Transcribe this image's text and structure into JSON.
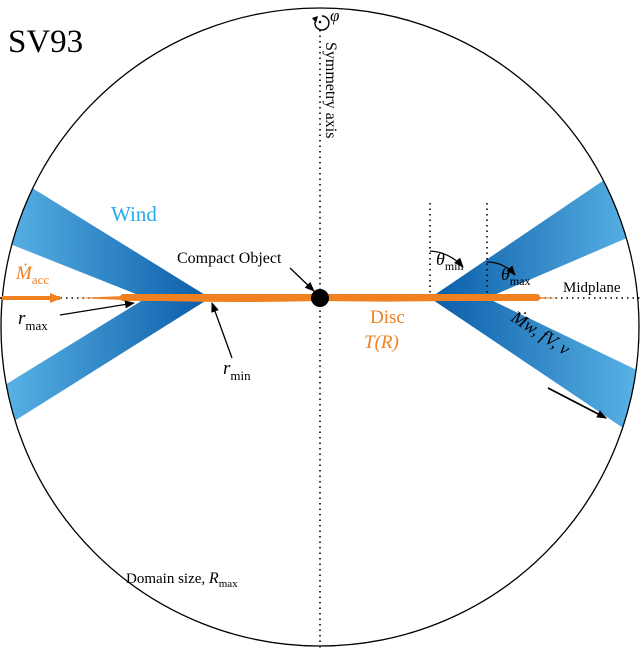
{
  "title": "SV93",
  "labels": {
    "phi": "φ",
    "symmetry_axis": "Symmetry axis",
    "wind": "Wind",
    "compact_object": "Compact Object",
    "theta_min": {
      "base": "θ",
      "sub": "min"
    },
    "theta_max": {
      "base": "θ",
      "sub": "max"
    },
    "mdot_acc": {
      "base": "Ṁ",
      "sub": "acc"
    },
    "midplane": "Midplane",
    "r_max": {
      "base": "r",
      "sub": "max"
    },
    "r_min": {
      "base": "r",
      "sub": "min"
    },
    "disc": "Disc",
    "disc_temp": "T(R)",
    "wind_params": "Ṁw, fV, v⃗",
    "domain_size": {
      "prefix": "Domain size, ",
      "base": "R",
      "sub": "max"
    }
  },
  "colors": {
    "wind_light": "#5ab4e6",
    "wind_dark": "#0a5ca8",
    "disc": "#f08020",
    "wind_label": "#2aa8e8",
    "text": "#000000"
  }
}
